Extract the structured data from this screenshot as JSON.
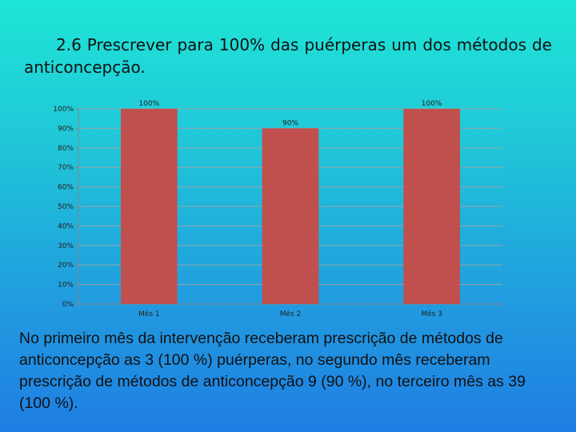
{
  "title": "2.6  Prescrever para 100% das puérperas um dos métodos de anticoncepção.",
  "caption": "No primeiro mês da intervenção receberam prescrição de métodos de anticoncepção as 3 (100 %) puérperas, no segundo mês receberam prescrição de métodos de anticoncepção 9 (90 %), no terceiro mês as 39 (100 %).",
  "colors": {
    "bar": "#c0504d",
    "grid": "#9aa3aa",
    "axis": "#808890"
  },
  "chart_data": {
    "type": "bar",
    "categories": [
      "Mês 1",
      "Mês 2",
      "Mês 3"
    ],
    "values": [
      100,
      90,
      100
    ],
    "data_labels": [
      "100%",
      "90%",
      "100%"
    ],
    "ylim": [
      0,
      100
    ],
    "yticks": [
      "0%",
      "10%",
      "20%",
      "30%",
      "40%",
      "50%",
      "60%",
      "70%",
      "80%",
      "90%",
      "100%"
    ],
    "grid": true,
    "legend": "none",
    "xlabel": "",
    "ylabel": ""
  }
}
